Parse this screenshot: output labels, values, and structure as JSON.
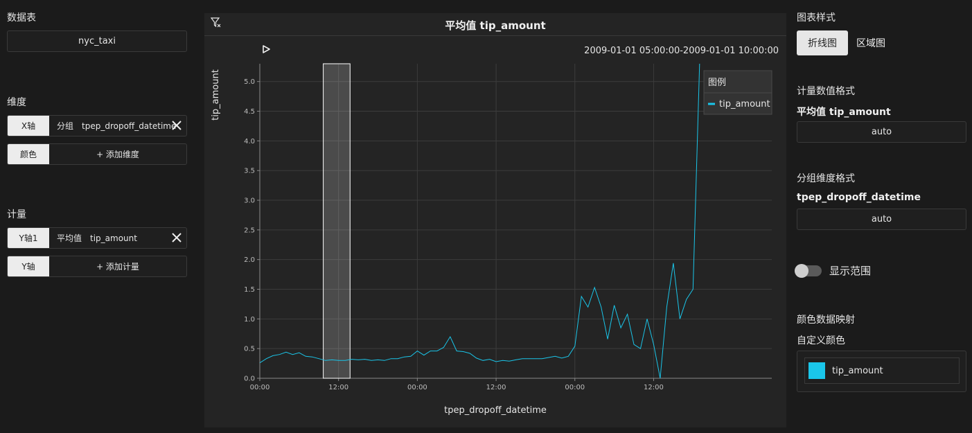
{
  "left": {
    "table_title": "数据表",
    "table_value": "nyc_taxi",
    "dimension_title": "维度",
    "dimensions": [
      {
        "tag": "X轴",
        "kind": "分组",
        "field": "tpep_dropoff_datetime"
      },
      {
        "tag": "颜色",
        "add_label": "+ 添加维度"
      }
    ],
    "measure_title": "计量",
    "measures": [
      {
        "tag": "Y轴1",
        "kind": "平均值",
        "field": "tip_amount"
      },
      {
        "tag": "Y轴",
        "add_label": "+ 添加计量"
      }
    ]
  },
  "chart": {
    "title": "平均值 tip_amount",
    "time_range": "2009-01-01 05:00:00-2009-01-01 10:00:00",
    "legend_title": "图例",
    "series_color": "#1ac6ea",
    "brush_from": "2009-01-01 09:40",
    "brush_to": "2009-01-01 13:45"
  },
  "chart_data": {
    "type": "line",
    "xlabel": "tpep_dropoff_datetime",
    "ylabel": "tip_amount",
    "x_ticks": [
      "00:00",
      "12:00",
      "00:00",
      "12:00",
      "00:00",
      "12:00"
    ],
    "y_ticks": [
      "0.0",
      "0.5",
      "1.0",
      "1.5",
      "2.0",
      "2.5",
      "3.0",
      "3.5",
      "4.0",
      "4.5",
      "5.0"
    ],
    "ylim": [
      0,
      5.3
    ],
    "x_start": "2009-01-01 00:00",
    "x_end": "2009-01-04 06:00",
    "legend_position": "top-right",
    "grid": true,
    "series": [
      {
        "name": "tip_amount",
        "x": [
          "2009-01-01 00:00",
          "2009-01-01 01:00",
          "2009-01-01 02:00",
          "2009-01-01 03:00",
          "2009-01-01 04:00",
          "2009-01-01 05:00",
          "2009-01-01 06:00",
          "2009-01-01 07:00",
          "2009-01-01 08:00",
          "2009-01-01 09:00",
          "2009-01-01 10:00",
          "2009-01-01 11:00",
          "2009-01-01 12:00",
          "2009-01-01 13:00",
          "2009-01-01 14:00",
          "2009-01-01 15:00",
          "2009-01-01 16:00",
          "2009-01-01 17:00",
          "2009-01-01 18:00",
          "2009-01-01 19:00",
          "2009-01-01 20:00",
          "2009-01-01 21:00",
          "2009-01-01 22:00",
          "2009-01-01 23:00",
          "2009-01-02 00:00",
          "2009-01-02 01:00",
          "2009-01-02 02:00",
          "2009-01-02 03:00",
          "2009-01-02 04:00",
          "2009-01-02 05:00",
          "2009-01-02 06:00",
          "2009-01-02 07:00",
          "2009-01-02 08:00",
          "2009-01-02 09:00",
          "2009-01-02 10:00",
          "2009-01-02 11:00",
          "2009-01-02 12:00",
          "2009-01-02 13:00",
          "2009-01-02 14:00",
          "2009-01-02 15:00",
          "2009-01-02 16:00",
          "2009-01-02 17:00",
          "2009-01-02 18:00",
          "2009-01-02 19:00",
          "2009-01-02 20:00",
          "2009-01-02 21:00",
          "2009-01-02 22:00",
          "2009-01-02 23:00",
          "2009-01-03 00:00",
          "2009-01-03 01:00",
          "2009-01-03 02:00",
          "2009-01-03 03:00",
          "2009-01-03 04:00",
          "2009-01-03 05:00",
          "2009-01-03 06:00",
          "2009-01-03 07:00",
          "2009-01-03 08:00",
          "2009-01-03 09:00",
          "2009-01-03 10:00",
          "2009-01-03 11:00",
          "2009-01-03 12:00",
          "2009-01-03 13:00",
          "2009-01-03 14:00",
          "2009-01-03 15:00",
          "2009-01-03 16:00",
          "2009-01-03 17:00",
          "2009-01-03 18:00",
          "2009-01-03 19:00"
        ],
        "values": [
          0.26,
          0.33,
          0.38,
          0.4,
          0.44,
          0.4,
          0.43,
          0.37,
          0.36,
          0.33,
          0.3,
          0.31,
          0.3,
          0.3,
          0.32,
          0.31,
          0.32,
          0.3,
          0.31,
          0.3,
          0.33,
          0.33,
          0.36,
          0.37,
          0.46,
          0.39,
          0.46,
          0.46,
          0.52,
          0.7,
          0.46,
          0.45,
          0.42,
          0.34,
          0.3,
          0.32,
          0.28,
          0.3,
          0.29,
          0.31,
          0.33,
          0.33,
          0.33,
          0.33,
          0.35,
          0.37,
          0.34,
          0.37,
          0.54,
          1.38,
          1.2,
          1.53,
          1.2,
          0.66,
          1.23,
          0.85,
          1.08,
          0.57,
          0.5,
          1.0,
          0.57,
          0.0,
          1.2,
          1.94,
          1.0,
          1.33,
          1.5,
          5.3
        ]
      }
    ]
  },
  "right": {
    "style_title": "图表样式",
    "style_options": [
      "折线图",
      "区域图"
    ],
    "measure_format_title": "计量数值格式",
    "measure_format_field": "平均值 tip_amount",
    "measure_format_value": "auto",
    "dim_format_title": "分组维度格式",
    "dim_format_field": "tpep_dropoff_datetime",
    "dim_format_value": "auto",
    "show_range_label": "显示范围",
    "color_map_title": "颜色数据映射",
    "custom_color_title": "自定义颜色",
    "color_items": [
      {
        "name": "tip_amount",
        "color": "#1ac6ea"
      }
    ]
  }
}
